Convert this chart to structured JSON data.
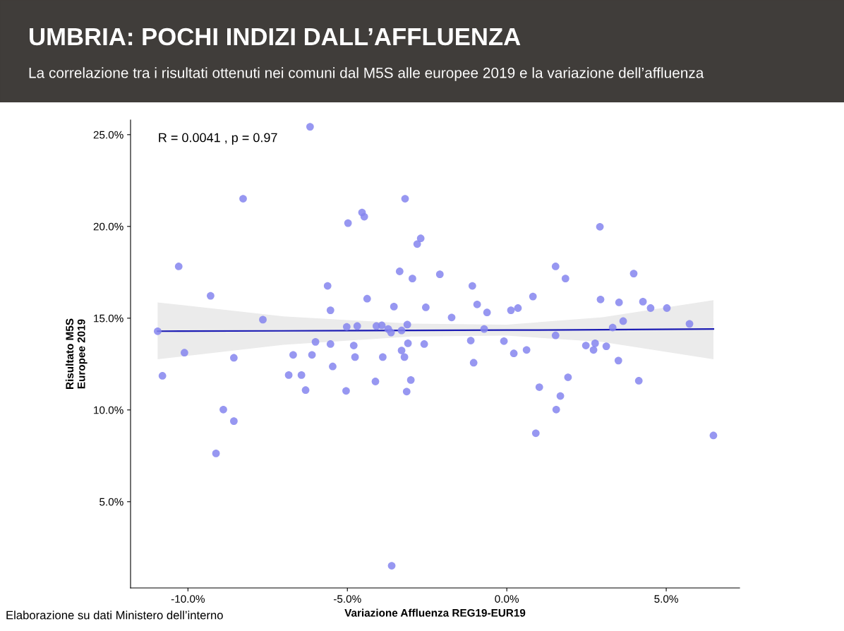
{
  "chart_data": {
    "type": "scatter",
    "title": "UMBRIA: POCHI INDIZI DALL’AFFLUENZA",
    "subtitle": "La correlazione tra i risultati ottenuti nei comuni dal M5S alle europee 2019 e la variazione dell’affluenza",
    "xlabel": "Variazione Affluenza REG19-EUR19",
    "ylabel": "Risultato M5S\nEuropee 2019",
    "annotations": [
      "R = 0.0041 , p = 0.97",
      "Elaborazione su dati Ministero dell’interno"
    ],
    "xlim": [
      -11.8,
      7.3
    ],
    "ylim": [
      0.3,
      25.8
    ],
    "xticks": [
      {
        "value": -10,
        "label": "-10.0%"
      },
      {
        "value": -5,
        "label": "-5.0%"
      },
      {
        "value": 0,
        "label": "0.0%"
      },
      {
        "value": 5,
        "label": "5.0%"
      }
    ],
    "yticks": [
      {
        "value": 5,
        "label": "5.0%"
      },
      {
        "value": 10,
        "label": "10.0%"
      },
      {
        "value": 15,
        "label": "15.0%"
      },
      {
        "value": 20,
        "label": "20.0%"
      },
      {
        "value": 25,
        "label": "25.0%"
      }
    ],
    "grid": false,
    "legend": false,
    "series": [
      {
        "marker": "circle",
        "color": "#8585ee",
        "x": [
          -10.95,
          -10.8,
          -10.29,
          -10.11,
          -9.29,
          -9.12,
          -8.89,
          -8.56,
          -8.56,
          -8.27,
          -7.65,
          -6.84,
          -6.7,
          -6.44,
          -6.31,
          -6.17,
          -6.11,
          -6.0,
          -5.62,
          -5.53,
          -5.53,
          -5.46,
          -5.04,
          -5.02,
          -4.98,
          -4.8,
          -4.76,
          -4.69,
          -4.54,
          -4.47,
          -4.38,
          -4.12,
          -4.09,
          -3.92,
          -3.89,
          -3.72,
          -3.63,
          -3.61,
          -3.54,
          -3.36,
          -3.3,
          -3.3,
          -3.21,
          -3.19,
          -3.14,
          -3.12,
          -3.1,
          -3.01,
          -2.96,
          -2.81,
          -2.7,
          -2.59,
          -2.54,
          -2.1,
          -1.73,
          -1.13,
          -1.08,
          -1.04,
          -0.93,
          -0.71,
          -0.62,
          -0.09,
          0.13,
          0.22,
          0.35,
          0.62,
          0.82,
          0.91,
          1.02,
          1.53,
          1.53,
          1.55,
          1.68,
          1.84,
          1.92,
          2.48,
          2.72,
          2.77,
          2.92,
          2.94,
          3.12,
          3.32,
          3.5,
          3.52,
          3.65,
          3.98,
          4.14,
          4.27,
          4.51,
          5.02,
          5.73,
          6.48
        ],
        "values": [
          14.29,
          11.86,
          17.82,
          13.12,
          16.22,
          7.63,
          10.02,
          12.84,
          9.39,
          21.51,
          14.92,
          11.9,
          13.0,
          11.9,
          11.08,
          25.43,
          13.0,
          13.71,
          16.76,
          15.43,
          13.59,
          12.37,
          11.04,
          14.53,
          20.18,
          13.51,
          12.88,
          14.57,
          20.76,
          20.53,
          16.06,
          11.55,
          14.57,
          14.61,
          12.88,
          14.41,
          14.22,
          1.51,
          15.63,
          17.55,
          14.33,
          13.24,
          12.88,
          21.51,
          11.0,
          14.65,
          13.63,
          11.63,
          17.16,
          19.04,
          19.35,
          13.59,
          15.59,
          17.39,
          15.04,
          13.78,
          16.76,
          12.57,
          15.75,
          14.41,
          15.31,
          13.75,
          15.43,
          13.08,
          15.55,
          13.27,
          16.18,
          8.73,
          11.24,
          14.06,
          17.82,
          10.02,
          10.76,
          17.16,
          11.78,
          13.51,
          13.27,
          13.63,
          19.98,
          16.02,
          13.47,
          14.49,
          12.69,
          15.86,
          14.84,
          17.43,
          11.59,
          15.9,
          15.55,
          15.55,
          14.69,
          8.61
        ]
      },
      {
        "type": "line",
        "color": "#1c1cb4",
        "marker": "none",
        "line_style": "solid",
        "x": [
          -10.95,
          -7,
          -3,
          0,
          3,
          6.48
        ],
        "values": [
          14.29,
          14.31,
          14.33,
          14.35,
          14.37,
          14.41
        ],
        "lower": [
          12.76,
          13.55,
          14.0,
          14.05,
          13.7,
          12.76
        ],
        "upper": [
          15.86,
          15.1,
          14.7,
          14.65,
          15.05,
          15.98
        ]
      }
    ]
  }
}
